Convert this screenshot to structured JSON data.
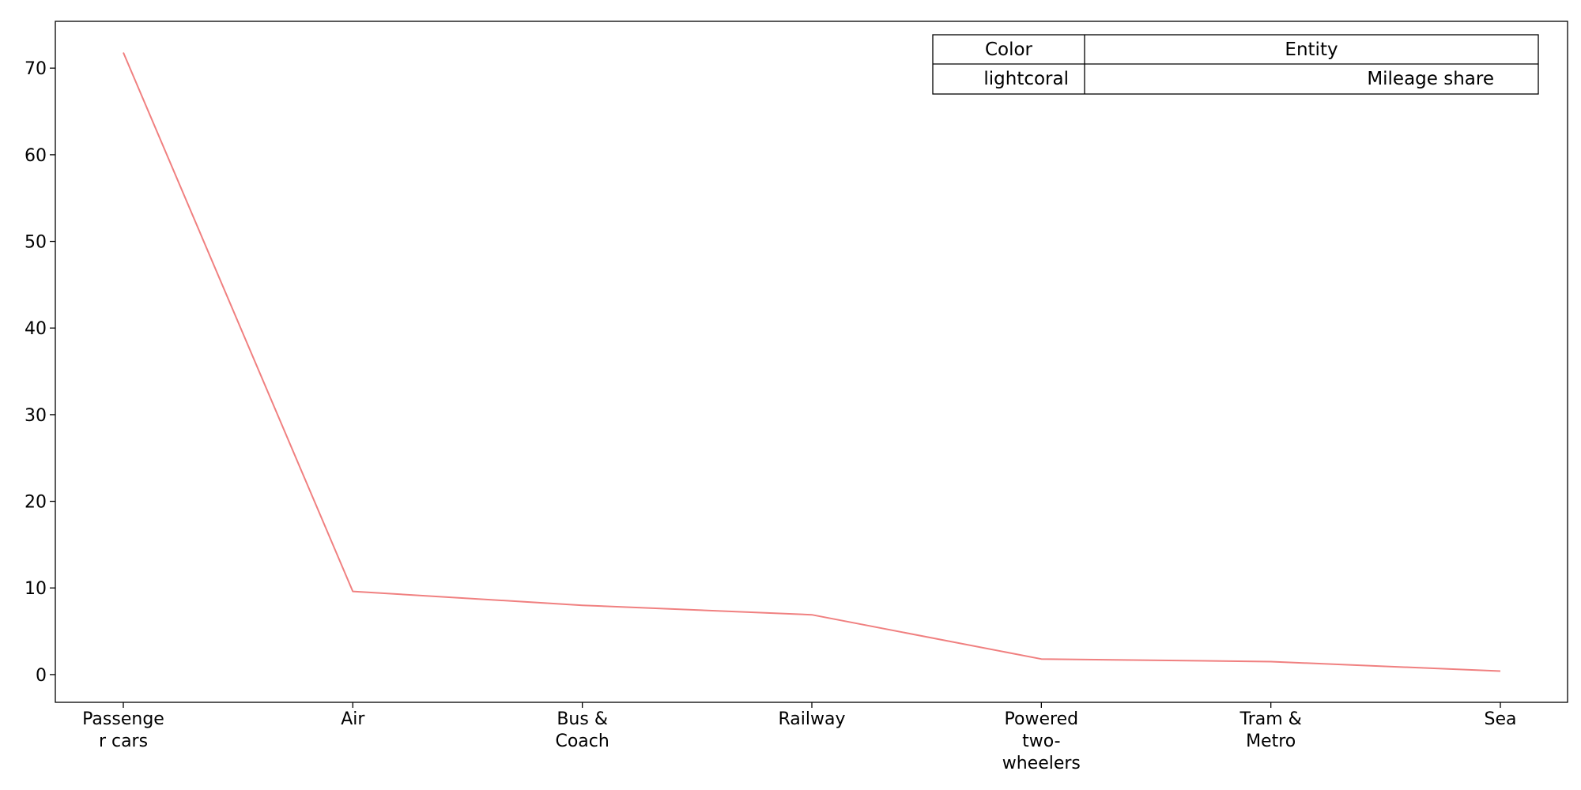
{
  "chart_data": {
    "type": "line",
    "title": "",
    "xlabel": "",
    "ylabel": "",
    "categories": [
      [
        "Passenge",
        "r cars"
      ],
      [
        "Air"
      ],
      [
        "Bus &",
        "Coach"
      ],
      [
        "Railway"
      ],
      [
        "Powered",
        "two-",
        "wheelers"
      ],
      [
        "Tram &",
        "Metro"
      ],
      [
        "Sea"
      ]
    ],
    "series": [
      {
        "name": "Mileage share",
        "color": "#f08080",
        "values": [
          71.8,
          9.6,
          8.0,
          6.9,
          1.8,
          1.5,
          0.4
        ]
      }
    ],
    "ylim": [
      -3.2,
      75.4
    ],
    "yticks": [
      0,
      10,
      20,
      30,
      40,
      50,
      60,
      70
    ],
    "grid": false,
    "legend": {
      "placement": "top-right",
      "header": {
        "color": "Color",
        "entity": "Entity"
      },
      "rows": [
        {
          "color": "lightcoral",
          "entity": "Mileage share"
        }
      ]
    }
  }
}
